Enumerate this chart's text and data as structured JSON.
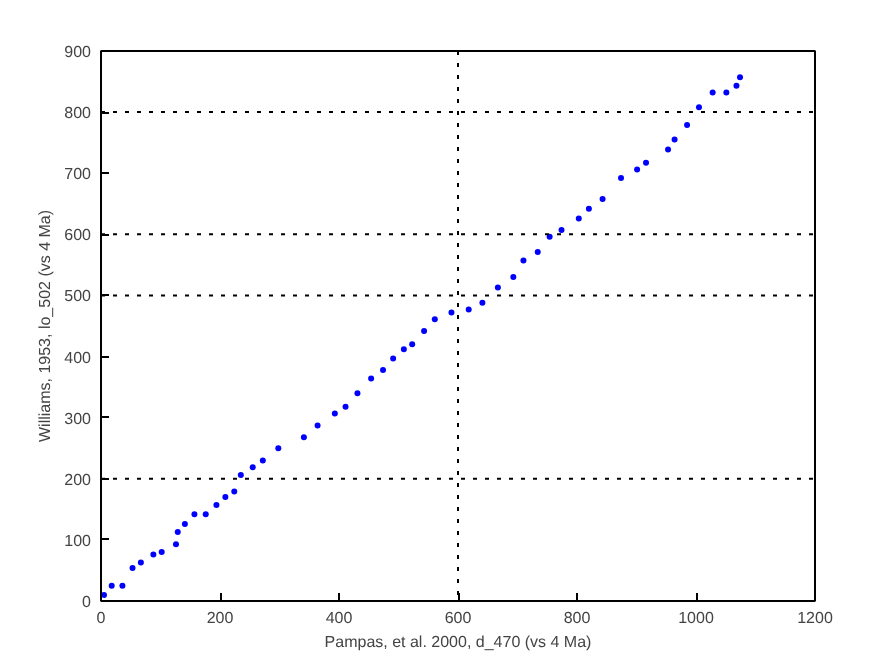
{
  "chart_data": {
    "type": "scatter",
    "xlabel": "Pampas, et al. 2000, d_470 (vs 4 Ma)",
    "ylabel": "Williams, 1953, lo_502 (vs 4 Ma)",
    "xlim": [
      0,
      1200
    ],
    "ylim": [
      0,
      900
    ],
    "xticks": [
      0,
      200,
      400,
      600,
      800,
      1000,
      1200
    ],
    "yticks": [
      0,
      100,
      200,
      300,
      400,
      500,
      600,
      700,
      800,
      900
    ],
    "grid": false,
    "marker": "circle",
    "ref_lines": [
      {
        "axis": "y",
        "value": 200,
        "color": "#000000",
        "line_style": "dotted"
      },
      {
        "axis": "y",
        "value": 500,
        "color": "#000000",
        "line_style": "dotted"
      },
      {
        "axis": "y",
        "value": 600,
        "color": "#000000",
        "line_style": "dotted"
      },
      {
        "axis": "y",
        "value": 800,
        "color": "#000000",
        "line_style": "dotted"
      },
      {
        "axis": "x",
        "value": 600,
        "color": "#000000",
        "line_style": "dotted"
      }
    ],
    "series": [
      {
        "color": "#0000ff",
        "x": [
          5,
          18,
          36,
          53,
          67,
          88,
          102,
          126,
          129,
          141,
          157,
          176,
          194,
          209,
          224,
          235,
          255,
          272,
          298,
          341,
          364,
          393,
          411,
          431,
          454,
          474,
          491,
          509,
          523,
          543,
          561,
          589,
          618,
          641,
          667,
          693,
          710,
          734,
          754,
          774,
          803,
          820,
          843,
          874,
          901,
          916,
          953,
          964,
          985,
          1005,
          1028,
          1051,
          1068,
          1074
        ],
        "values": [
          10,
          25,
          25,
          54,
          63,
          76,
          80,
          93,
          113,
          126,
          142,
          142,
          157,
          170,
          179,
          206,
          219,
          230,
          250,
          268,
          287,
          307,
          318,
          340,
          364,
          378,
          397,
          412,
          420,
          442,
          461,
          472,
          477,
          488,
          513,
          530,
          557,
          571,
          596,
          607,
          626,
          642,
          658,
          692,
          706,
          717,
          739,
          755,
          779,
          808,
          832,
          832,
          843,
          857
        ]
      }
    ]
  }
}
